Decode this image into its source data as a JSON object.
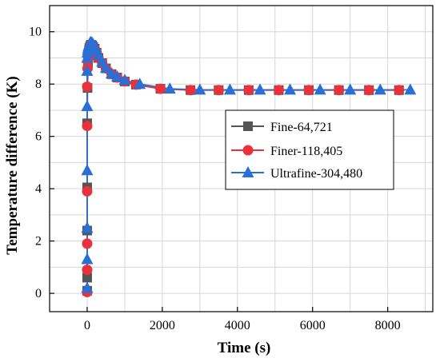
{
  "chart_data": {
    "type": "line",
    "xlabel": "Time (s)",
    "ylabel": "Temperature difference (K)",
    "xlim": [
      -1000,
      9200
    ],
    "ylim": [
      -0.7,
      11.0
    ],
    "xticks": [
      0,
      2000,
      4000,
      6000,
      8000
    ],
    "yticks": [
      0,
      2,
      4,
      6,
      8,
      10
    ],
    "legend_position": "center-right",
    "grid": true,
    "series": [
      {
        "name": "Fine-64,721",
        "color": "#555555",
        "marker": "square",
        "x": [
          0,
          0,
          0,
          0,
          0,
          10,
          20,
          30,
          40,
          50,
          60,
          80,
          100,
          130,
          160,
          200,
          250,
          300,
          400,
          500,
          650,
          800,
          1000,
          1300,
          1950,
          2750,
          3500,
          4300,
          5100,
          5900,
          6700,
          7500,
          8300
        ],
        "y": [
          0.1,
          0.6,
          2.4,
          4.05,
          6.5,
          7.85,
          8.8,
          9.05,
          9.2,
          9.3,
          9.38,
          9.45,
          9.5,
          9.48,
          9.42,
          9.35,
          9.2,
          9.0,
          8.8,
          8.6,
          8.38,
          8.25,
          8.1,
          7.98,
          7.82,
          7.77,
          7.77,
          7.77,
          7.77,
          7.77,
          7.77,
          7.77,
          7.77
        ]
      },
      {
        "name": "Finer-118,405",
        "color": "#e8313b",
        "marker": "circle",
        "x": [
          0,
          0,
          0,
          0,
          0,
          0,
          10,
          20,
          30,
          40,
          60,
          80,
          100,
          130,
          160,
          200,
          250,
          300,
          400,
          500,
          650,
          800,
          1000,
          1300,
          1950,
          2750,
          3500,
          4300,
          5100,
          5900,
          6700,
          7500,
          8300
        ],
        "y": [
          0.05,
          0.9,
          1.9,
          3.9,
          6.4,
          7.9,
          8.6,
          8.85,
          9.05,
          9.2,
          9.35,
          9.45,
          9.5,
          9.48,
          9.42,
          9.35,
          9.2,
          9.0,
          8.8,
          8.6,
          8.38,
          8.25,
          8.1,
          7.98,
          7.82,
          7.77,
          7.77,
          7.77,
          7.77,
          7.77,
          7.77,
          7.77,
          7.77
        ]
      },
      {
        "name": "Ultrafine-304,480",
        "color": "#2a6fd6",
        "marker": "triangle",
        "x": [
          0,
          0,
          0,
          0,
          0,
          0,
          0,
          10,
          20,
          30,
          40,
          60,
          80,
          100,
          130,
          160,
          200,
          250,
          300,
          400,
          500,
          650,
          800,
          1000,
          1400,
          2200,
          3000,
          3800,
          4600,
          5400,
          6200,
          7000,
          7800,
          8600
        ],
        "y": [
          0.2,
          1.3,
          2.5,
          4.7,
          7.15,
          8.5,
          9.0,
          9.2,
          9.3,
          9.38,
          9.45,
          9.52,
          9.58,
          9.6,
          9.58,
          9.52,
          9.45,
          9.3,
          9.1,
          8.85,
          8.62,
          8.4,
          8.28,
          8.15,
          8.0,
          7.82,
          7.78,
          7.78,
          7.78,
          7.78,
          7.78,
          7.78,
          7.78,
          7.78
        ]
      }
    ]
  }
}
